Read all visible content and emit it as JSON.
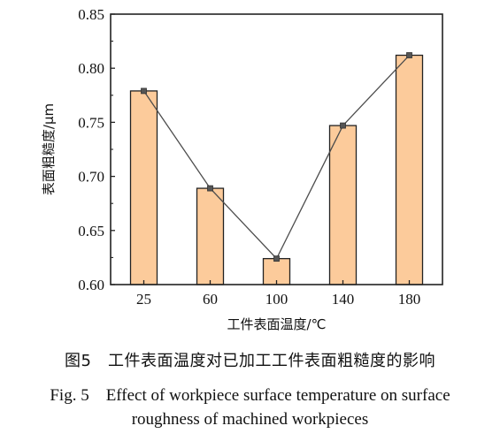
{
  "chart_data": {
    "type": "bar",
    "categories": [
      "25",
      "60",
      "100",
      "140",
      "180"
    ],
    "values": [
      0.779,
      0.689,
      0.624,
      0.747,
      0.812
    ],
    "line_overlay": true,
    "xlabel": "工件表面温度/℃",
    "ylabel": "表面粗糙度/μm",
    "ylim": [
      0.6,
      0.85
    ],
    "yticks": [
      "0.60",
      "0.65",
      "0.70",
      "0.75",
      "0.80",
      "0.85"
    ],
    "grid": false,
    "legend": "none",
    "colors": {
      "bar_fill": "#FCCB9B",
      "bar_stroke": "#222222",
      "line": "#4d4d4d",
      "marker": "#555555"
    }
  },
  "caption": {
    "cn": "图5　工件表面温度对已加工工件表面粗糙度的影响",
    "en_line1": "Fig. 5　Effect of workpiece surface temperature on surface",
    "en_line2": "roughness of machined workpieces"
  }
}
